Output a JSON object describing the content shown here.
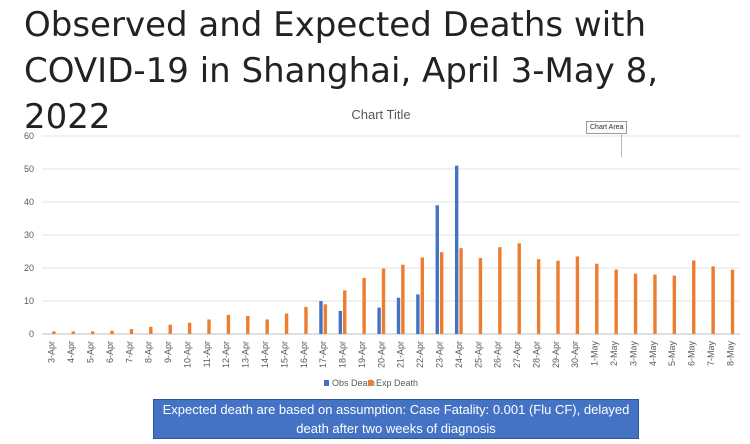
{
  "header": {
    "title": "Observed and Expected Deaths with COVID-19 in Shanghai, April 3-May 8, 2022"
  },
  "chart_area_label": "Chart Area",
  "footnote": "Expected death are based on assumption: Case Fatality: 0.001 (Flu CF), delayed death after two weeks of diagnosis",
  "chart_data": {
    "type": "bar",
    "title": "Chart Title",
    "xlabel": "",
    "ylabel": "",
    "ylim": [
      0,
      60
    ],
    "yticks": [
      0,
      10,
      20,
      30,
      40,
      50,
      60
    ],
    "grid": true,
    "legend_position": "bottom",
    "categories": [
      "3-Apr",
      "4-Apr",
      "5-Apr",
      "6-Apr",
      "7-Apr",
      "8-Apr",
      "9-Apr",
      "10-Apr",
      "11-Apr",
      "12-Apr",
      "13-Apr",
      "14-Apr",
      "15-Apr",
      "16-Apr",
      "17-Apr",
      "18-Apr",
      "19-Apr",
      "20-Apr",
      "21-Apr",
      "22-Apr",
      "23-Apr",
      "24-Apr",
      "25-Apr",
      "26-Apr",
      "27-Apr",
      "28-Apr",
      "29-Apr",
      "30-Apr",
      "1-May",
      "2-May",
      "3-May",
      "4-May",
      "5-May",
      "6-May",
      "7-May",
      "8-May"
    ],
    "series": [
      {
        "name": "Obs Death",
        "color": "#4472c4",
        "values": [
          0,
          0,
          0,
          0,
          0,
          0,
          0,
          0,
          0,
          0,
          0,
          0,
          0,
          0,
          10,
          7,
          0,
          8,
          11,
          12,
          39,
          51,
          0,
          0,
          0,
          0,
          0,
          0,
          0,
          0,
          0,
          0,
          0,
          0,
          0,
          0
        ]
      },
      {
        "name": "Exp Death",
        "color": "#ed7d31",
        "values": [
          0.8,
          0.8,
          0.8,
          1,
          1.5,
          2.2,
          2.8,
          3.4,
          4.4,
          5.8,
          5.5,
          4.4,
          6.2,
          8.2,
          9,
          13.2,
          17,
          19.8,
          21,
          23.2,
          24.8,
          26,
          23,
          26.3,
          27.5,
          22.7,
          22.2,
          23.5,
          21.3,
          19.5,
          18.3,
          18,
          17.7,
          22.3,
          20.5,
          19.5
        ]
      }
    ]
  }
}
